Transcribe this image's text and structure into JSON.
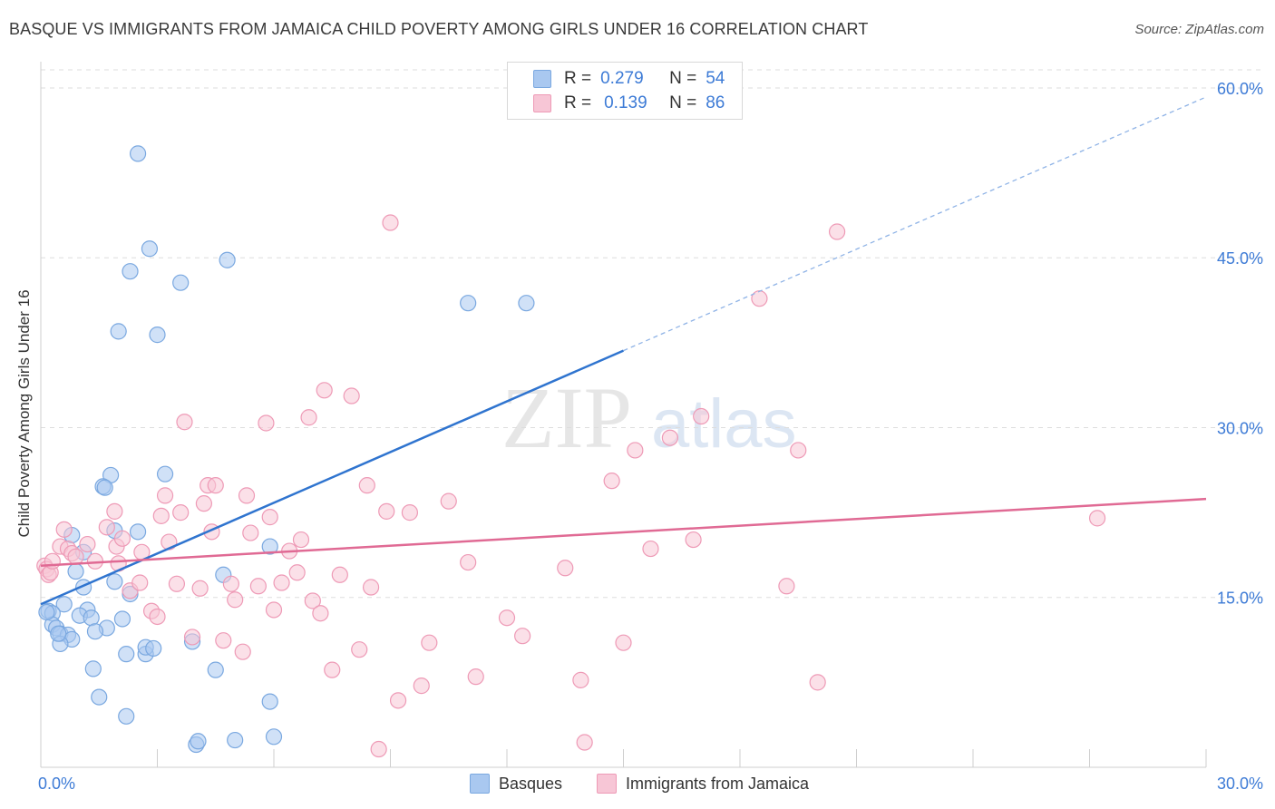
{
  "title": "BASQUE VS IMMIGRANTS FROM JAMAICA CHILD POVERTY AMONG GIRLS UNDER 16 CORRELATION CHART",
  "source": "Source: ZipAtlas.com",
  "watermark": {
    "zip": "ZIP",
    "atlas": "atlas"
  },
  "legend_top": {
    "rows": [
      {
        "r_label": "R =",
        "r_value": "0.279",
        "n_label": "N =",
        "n_value": "54",
        "color": "#a9c8f0",
        "border": "#7aa8e0"
      },
      {
        "r_label": "R =",
        "r_value": "0.139",
        "n_label": "N =",
        "n_value": "86",
        "color": "#f7c6d6",
        "border": "#ee9ab6"
      }
    ]
  },
  "legend_bottom": [
    {
      "label": "Basques",
      "color": "#a9c8f0",
      "border": "#7aa8e0"
    },
    {
      "label": "Immigrants from Jamaica",
      "color": "#f7c6d6",
      "border": "#ee9ab6"
    }
  ],
  "chart_data": {
    "type": "scatter",
    "title": "BASQUE VS IMMIGRANTS FROM JAMAICA CHILD POVERTY AMONG GIRLS UNDER 16 CORRELATION CHART",
    "xlabel": "",
    "ylabel": "Child Poverty Among Girls Under 16",
    "xlim": [
      0,
      30
    ],
    "ylim": [
      0,
      60
    ],
    "x_tick_labels": [
      {
        "value": 0,
        "label": "0.0%"
      },
      {
        "value": 30,
        "label": "30.0%"
      }
    ],
    "y_tick_labels": [
      {
        "value": 15,
        "label": "15.0%"
      },
      {
        "value": 30,
        "label": "30.0%"
      },
      {
        "value": 45,
        "label": "45.0%"
      },
      {
        "value": 60,
        "label": "60.0%"
      }
    ],
    "grid": true,
    "series": [
      {
        "name": "Basques",
        "color": "#a9c8f0",
        "edge": "#7aa8e0",
        "line_color": "#2f74cf",
        "trend": {
          "x0": 0,
          "y0": 14.4,
          "x1": 15,
          "y1": 36.8,
          "extend_to_x": 30,
          "extend_to_y": 59.2
        },
        "points": [
          [
            2.5,
            54.2
          ],
          [
            2.8,
            45.8
          ],
          [
            2.3,
            43.8
          ],
          [
            3.6,
            42.8
          ],
          [
            4.8,
            44.8
          ],
          [
            2.0,
            38.5
          ],
          [
            3.0,
            38.2
          ],
          [
            11.0,
            41.0
          ],
          [
            12.5,
            41.0
          ],
          [
            1.8,
            25.8
          ],
          [
            1.6,
            24.8
          ],
          [
            1.65,
            24.7
          ],
          [
            3.2,
            25.9
          ],
          [
            1.9,
            20.9
          ],
          [
            2.5,
            20.8
          ],
          [
            0.8,
            20.5
          ],
          [
            1.1,
            19.0
          ],
          [
            5.9,
            19.5
          ],
          [
            0.9,
            17.3
          ],
          [
            1.9,
            16.4
          ],
          [
            1.1,
            15.9
          ],
          [
            2.3,
            15.3
          ],
          [
            4.7,
            17.0
          ],
          [
            0.6,
            14.4
          ],
          [
            0.2,
            13.8
          ],
          [
            0.3,
            13.6
          ],
          [
            1.2,
            13.9
          ],
          [
            1.0,
            13.4
          ],
          [
            1.3,
            13.2
          ],
          [
            2.1,
            13.1
          ],
          [
            0.3,
            12.6
          ],
          [
            0.4,
            12.3
          ],
          [
            1.7,
            12.3
          ],
          [
            0.5,
            11.8
          ],
          [
            0.7,
            11.7
          ],
          [
            1.4,
            12.0
          ],
          [
            0.8,
            11.3
          ],
          [
            0.5,
            10.9
          ],
          [
            2.2,
            10.0
          ],
          [
            2.7,
            10.0
          ],
          [
            2.7,
            10.6
          ],
          [
            2.9,
            10.5
          ],
          [
            3.9,
            11.1
          ],
          [
            1.35,
            8.7
          ],
          [
            4.5,
            8.6
          ],
          [
            1.5,
            6.2
          ],
          [
            2.2,
            4.5
          ],
          [
            5.9,
            5.8
          ],
          [
            4.0,
            2.0
          ],
          [
            4.05,
            2.3
          ],
          [
            5.0,
            2.4
          ],
          [
            6.0,
            2.7
          ],
          [
            0.15,
            13.7
          ],
          [
            0.45,
            11.8
          ]
        ]
      },
      {
        "name": "Immigrants from Jamaica",
        "color": "#f7c6d6",
        "edge": "#ee9ab6",
        "line_color": "#e06a94",
        "trend": {
          "x0": 0,
          "y0": 17.8,
          "x1": 30,
          "y1": 23.7
        },
        "points": [
          [
            0.1,
            17.8
          ],
          [
            0.15,
            17.5
          ],
          [
            0.2,
            17.0
          ],
          [
            0.25,
            17.2
          ],
          [
            0.3,
            18.2
          ],
          [
            0.5,
            19.5
          ],
          [
            0.6,
            21.0
          ],
          [
            0.7,
            19.3
          ],
          [
            0.8,
            18.9
          ],
          [
            0.9,
            18.6
          ],
          [
            1.2,
            19.7
          ],
          [
            1.4,
            18.2
          ],
          [
            1.7,
            21.2
          ],
          [
            1.9,
            22.6
          ],
          [
            1.95,
            19.5
          ],
          [
            2.0,
            18.0
          ],
          [
            2.1,
            20.2
          ],
          [
            2.3,
            15.6
          ],
          [
            2.55,
            16.3
          ],
          [
            2.6,
            19.0
          ],
          [
            2.85,
            13.8
          ],
          [
            3.0,
            13.3
          ],
          [
            3.1,
            22.2
          ],
          [
            3.2,
            24.0
          ],
          [
            3.3,
            19.9
          ],
          [
            3.5,
            16.2
          ],
          [
            3.6,
            22.5
          ],
          [
            3.7,
            30.5
          ],
          [
            3.9,
            11.5
          ],
          [
            4.1,
            15.8
          ],
          [
            4.2,
            23.3
          ],
          [
            4.3,
            24.9
          ],
          [
            4.4,
            20.8
          ],
          [
            4.5,
            24.9
          ],
          [
            4.7,
            11.2
          ],
          [
            4.9,
            16.2
          ],
          [
            5.0,
            14.8
          ],
          [
            5.2,
            10.2
          ],
          [
            5.3,
            24.0
          ],
          [
            5.4,
            20.7
          ],
          [
            5.6,
            16.0
          ],
          [
            5.8,
            30.4
          ],
          [
            5.9,
            22.1
          ],
          [
            6.0,
            13.9
          ],
          [
            6.2,
            16.3
          ],
          [
            6.4,
            19.1
          ],
          [
            6.6,
            17.2
          ],
          [
            6.7,
            20.1
          ],
          [
            6.9,
            30.9
          ],
          [
            7.0,
            14.7
          ],
          [
            7.2,
            13.6
          ],
          [
            7.3,
            33.3
          ],
          [
            7.5,
            8.6
          ],
          [
            7.7,
            17.0
          ],
          [
            8.0,
            32.8
          ],
          [
            8.2,
            10.4
          ],
          [
            8.4,
            24.9
          ],
          [
            8.5,
            15.9
          ],
          [
            8.7,
            1.6
          ],
          [
            8.9,
            22.6
          ],
          [
            9.0,
            48.1
          ],
          [
            9.2,
            5.9
          ],
          [
            9.5,
            22.5
          ],
          [
            9.8,
            7.2
          ],
          [
            10.0,
            11.0
          ],
          [
            10.5,
            23.5
          ],
          [
            11.0,
            18.1
          ],
          [
            11.2,
            8.0
          ],
          [
            12.0,
            13.2
          ],
          [
            12.4,
            11.6
          ],
          [
            13.5,
            17.6
          ],
          [
            13.9,
            7.7
          ],
          [
            14.0,
            2.2
          ],
          [
            14.7,
            25.3
          ],
          [
            15.0,
            11.0
          ],
          [
            15.3,
            28.0
          ],
          [
            15.7,
            19.3
          ],
          [
            16.2,
            29.1
          ],
          [
            16.8,
            20.1
          ],
          [
            17.0,
            31.0
          ],
          [
            18.5,
            41.4
          ],
          [
            19.2,
            16.0
          ],
          [
            19.5,
            28.0
          ],
          [
            20.0,
            7.5
          ],
          [
            20.5,
            47.3
          ],
          [
            27.2,
            22.0
          ]
        ]
      }
    ]
  }
}
